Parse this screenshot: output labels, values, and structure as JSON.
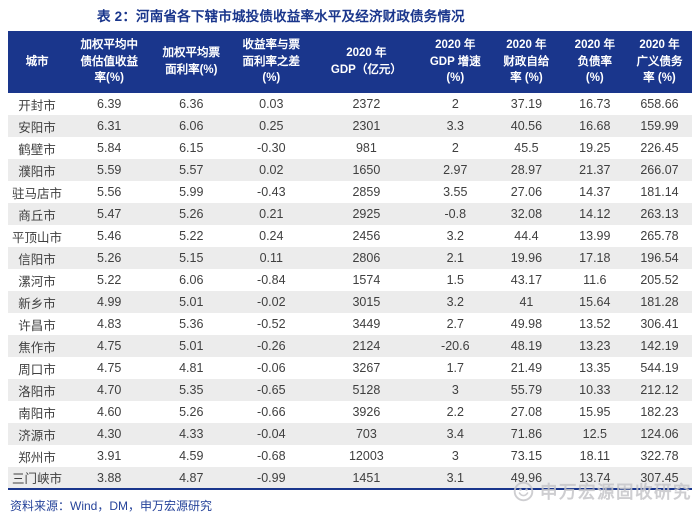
{
  "title": "表 2：河南省各下辖市城投债收益率水平及经济财政债务情况",
  "colors": {
    "accent_navy": "#1a368c",
    "stripe_gray": "#ececec",
    "watermark_gray": "#c6c6ca"
  },
  "table": {
    "headers": [
      "城市",
      "加权平均中\n债估值收益\n率(%)",
      "加权平均票\n面利率(%)",
      "收益率与票\n面利率之差\n(%)",
      "2020 年\nGDP（亿元）",
      "2020 年\nGDP 增速\n(%)",
      "2020 年\n财政自给\n率 (%)",
      "2020 年\n负债率\n(%)",
      "2020 年\n广义债务\n率 (%)"
    ],
    "rows": [
      [
        "开封市",
        "6.39",
        "6.36",
        "0.03",
        "2372",
        "2",
        "37.19",
        "16.73",
        "658.66"
      ],
      [
        "安阳市",
        "6.31",
        "6.06",
        "0.25",
        "2301",
        "3.3",
        "40.56",
        "16.68",
        "159.99"
      ],
      [
        "鹤壁市",
        "5.84",
        "6.15",
        "-0.30",
        "981",
        "2",
        "45.5",
        "19.25",
        "226.45"
      ],
      [
        "濮阳市",
        "5.59",
        "5.57",
        "0.02",
        "1650",
        "2.97",
        "28.97",
        "21.37",
        "266.07"
      ],
      [
        "驻马店市",
        "5.56",
        "5.99",
        "-0.43",
        "2859",
        "3.55",
        "27.06",
        "14.37",
        "181.14"
      ],
      [
        "商丘市",
        "5.47",
        "5.26",
        "0.21",
        "2925",
        "-0.8",
        "32.08",
        "14.12",
        "263.13"
      ],
      [
        "平顶山市",
        "5.46",
        "5.22",
        "0.24",
        "2456",
        "3.2",
        "44.4",
        "13.99",
        "265.78"
      ],
      [
        "信阳市",
        "5.26",
        "5.15",
        "0.11",
        "2806",
        "2.1",
        "19.96",
        "17.18",
        "196.54"
      ],
      [
        "漯河市",
        "5.22",
        "6.06",
        "-0.84",
        "1574",
        "1.5",
        "43.17",
        "11.6",
        "205.52"
      ],
      [
        "新乡市",
        "4.99",
        "5.01",
        "-0.02",
        "3015",
        "3.2",
        "41",
        "15.64",
        "181.28"
      ],
      [
        "许昌市",
        "4.83",
        "5.36",
        "-0.52",
        "3449",
        "2.7",
        "49.98",
        "13.52",
        "306.41"
      ],
      [
        "焦作市",
        "4.75",
        "5.01",
        "-0.26",
        "2124",
        "-20.6",
        "48.19",
        "13.23",
        "142.19"
      ],
      [
        "周口市",
        "4.75",
        "4.81",
        "-0.06",
        "3267",
        "1.7",
        "21.49",
        "13.35",
        "544.19"
      ],
      [
        "洛阳市",
        "4.70",
        "5.35",
        "-0.65",
        "5128",
        "3",
        "55.79",
        "10.33",
        "212.12"
      ],
      [
        "南阳市",
        "4.60",
        "5.26",
        "-0.66",
        "3926",
        "2.2",
        "27.08",
        "15.95",
        "182.23"
      ],
      [
        "济源市",
        "4.30",
        "4.33",
        "-0.04",
        "703",
        "3.4",
        "71.86",
        "12.5",
        "124.06"
      ],
      [
        "郑州市",
        "3.91",
        "4.59",
        "-0.68",
        "12003",
        "3",
        "73.15",
        "18.11",
        "322.78"
      ],
      [
        "三门峡市",
        "3.88",
        "4.87",
        "-0.99",
        "1451",
        "3.1",
        "49.96",
        "13.74",
        "307.45"
      ]
    ],
    "col_widths": [
      "8.5%",
      "12.6%",
      "11.4%",
      "12%",
      "15.8%",
      "10.2%",
      "10.6%",
      "9.4%",
      "9.5%"
    ]
  },
  "footer": {
    "source": "资料来源：Wind，DM，申万宏源研究"
  },
  "watermark": {
    "icon": "wechat-smiley-icon",
    "text": "申万宏源固收研究"
  }
}
